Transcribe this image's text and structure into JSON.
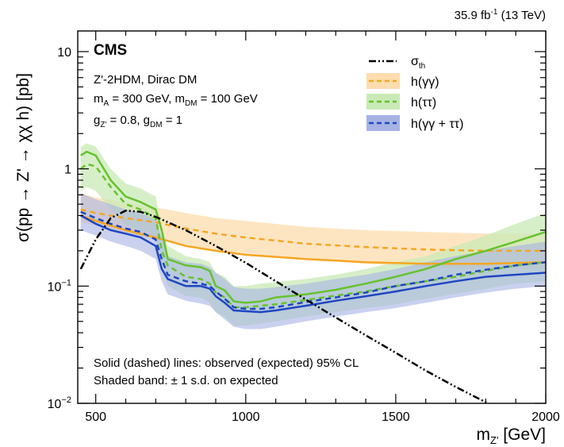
{
  "chart_data": {
    "type": "line",
    "header": {
      "lumi": "35.9",
      "lumi_unit_base": "fb",
      "lumi_unit_exp": "-1",
      "energy": "(13 TeV)"
    },
    "experiment": "CMS",
    "model_info": {
      "line1": "Z'-2HDM, Dirac DM",
      "line2": {
        "a_sym": "m",
        "a_sub": "A",
        "a_val": " = 300 GeV, ",
        "b_sym": "m",
        "b_sub": "DM",
        "b_val": " = 100 GeV"
      },
      "line3": {
        "a_sym": "g",
        "a_sub": "Z'",
        "a_val": " = 0.8, ",
        "b_sym": "g",
        "b_sub": "DM",
        "b_val": " = 1"
      }
    },
    "xlabel": {
      "sym": "m",
      "sub": "Z'",
      "unit": " [GeV]"
    },
    "ylabel": "σ(pp → Z' → χχ h) [pb]",
    "xlim": [
      440,
      2000
    ],
    "ylim": [
      0.01,
      15
    ],
    "yscale": "log",
    "xticks": [
      {
        "v": 500,
        "label": "500"
      },
      {
        "v": 1000,
        "label": "1000"
      },
      {
        "v": 1500,
        "label": "1500"
      },
      {
        "v": 2000,
        "label": "2000"
      }
    ],
    "yticks": [
      {
        "v": 0.01,
        "base": "10",
        "exp": "−2"
      },
      {
        "v": 0.1,
        "base": "10",
        "exp": "−1"
      },
      {
        "v": 1,
        "base": "1",
        "exp": ""
      },
      {
        "v": 10,
        "base": "10",
        "exp": ""
      }
    ],
    "colors": {
      "gg": "#f5a623",
      "tt": "#66c22e",
      "comb": "#1f46c2",
      "gg_band": "#fddcae",
      "tt_band": "#c9eab6",
      "comb_band": "#a7b3e4"
    },
    "legend": [
      {
        "sym": "σ",
        "sub": "th"
      },
      {
        "label": "h(γγ)"
      },
      {
        "label": "h(ττ)"
      },
      {
        "label": "h(γγ + ττ)"
      }
    ],
    "legend_position": "top-right",
    "notes": [
      "Solid (dashed) lines: observed (expected) 95% CL",
      "Shaded band: ± 1 s.d. on expected"
    ],
    "series": {
      "sigma_th": {
        "x": [
          450,
          500,
          550,
          600,
          650,
          700,
          800,
          900,
          1000,
          1100,
          1200,
          1300,
          1400,
          1500,
          1600,
          1700,
          1800,
          1900,
          1950,
          2000
        ],
        "y": [
          0.14,
          0.25,
          0.38,
          0.44,
          0.43,
          0.39,
          0.3,
          0.22,
          0.158,
          0.11,
          0.077,
          0.054,
          0.038,
          0.027,
          0.019,
          0.0138,
          0.0102,
          0.0077,
          0.0067,
          0.0058
        ]
      },
      "gg_obs": {
        "x": [
          450,
          500,
          600,
          700,
          800,
          900,
          1000,
          1200,
          1400,
          1600,
          1800,
          2000
        ],
        "y": [
          0.4,
          0.36,
          0.3,
          0.26,
          0.22,
          0.2,
          0.185,
          0.17,
          0.16,
          0.155,
          0.155,
          0.16
        ]
      },
      "gg_exp": {
        "x": [
          450,
          500,
          600,
          700,
          800,
          900,
          1000,
          1200,
          1400,
          1600,
          1800,
          2000
        ],
        "y": [
          0.45,
          0.42,
          0.38,
          0.35,
          0.31,
          0.28,
          0.26,
          0.23,
          0.215,
          0.205,
          0.2,
          0.2
        ]
      },
      "gg_band": {
        "x": [
          450,
          500,
          600,
          700,
          800,
          900,
          1000,
          1200,
          1400,
          1600,
          1800,
          2000
        ],
        "lo": [
          0.35,
          0.33,
          0.28,
          0.25,
          0.22,
          0.2,
          0.19,
          0.17,
          0.155,
          0.145,
          0.14,
          0.14
        ],
        "hi": [
          0.62,
          0.57,
          0.52,
          0.47,
          0.42,
          0.38,
          0.36,
          0.32,
          0.3,
          0.29,
          0.28,
          0.28
        ]
      },
      "tt_obs": {
        "x": [
          450,
          470,
          500,
          550,
          600,
          650,
          700,
          720,
          740,
          800,
          850,
          880,
          900,
          930,
          960,
          1000,
          1050,
          1100,
          1200,
          1300,
          1400,
          1500,
          1600,
          1700,
          1800,
          1900,
          2000
        ],
        "y": [
          1.3,
          1.4,
          1.3,
          0.8,
          0.58,
          0.52,
          0.45,
          0.3,
          0.17,
          0.15,
          0.145,
          0.135,
          0.1,
          0.092,
          0.074,
          0.072,
          0.074,
          0.08,
          0.085,
          0.093,
          0.105,
          0.12,
          0.14,
          0.17,
          0.2,
          0.24,
          0.29
        ]
      },
      "tt_exp": {
        "x": [
          450,
          470,
          500,
          550,
          600,
          650,
          700,
          720,
          740,
          800,
          850,
          880,
          900,
          930,
          960,
          1000,
          1050,
          1100,
          1200,
          1300,
          1400,
          1500,
          1600,
          1700,
          1800,
          1900,
          2000
        ],
        "y": [
          1.0,
          1.1,
          1.05,
          0.7,
          0.5,
          0.45,
          0.38,
          0.2,
          0.15,
          0.12,
          0.115,
          0.105,
          0.088,
          0.08,
          0.066,
          0.066,
          0.068,
          0.07,
          0.076,
          0.083,
          0.09,
          0.1,
          0.11,
          0.12,
          0.135,
          0.15,
          0.16
        ]
      },
      "tt_band": {
        "x": [
          450,
          470,
          500,
          550,
          600,
          650,
          700,
          720,
          740,
          800,
          850,
          880,
          900,
          930,
          960,
          1000,
          1050,
          1100,
          1200,
          1300,
          1400,
          1500,
          1600,
          1700,
          1800,
          1900,
          2000
        ],
        "lo": [
          0.65,
          0.7,
          0.65,
          0.45,
          0.33,
          0.3,
          0.25,
          0.14,
          0.1,
          0.082,
          0.08,
          0.072,
          0.06,
          0.055,
          0.046,
          0.046,
          0.048,
          0.05,
          0.055,
          0.06,
          0.065,
          0.07,
          0.078,
          0.086,
          0.095,
          0.105,
          0.11
        ],
        "hi": [
          1.55,
          1.65,
          1.55,
          1.0,
          0.75,
          0.68,
          0.58,
          0.3,
          0.22,
          0.18,
          0.17,
          0.16,
          0.13,
          0.12,
          0.1,
          0.1,
          0.105,
          0.108,
          0.115,
          0.125,
          0.14,
          0.16,
          0.18,
          0.22,
          0.27,
          0.34,
          0.42
        ]
      },
      "comb_obs": {
        "x": [
          450,
          500,
          550,
          600,
          650,
          700,
          720,
          740,
          800,
          850,
          880,
          900,
          930,
          960,
          1000,
          1050,
          1100,
          1200,
          1300,
          1400,
          1500,
          1600,
          1700,
          1800,
          1900,
          2000
        ],
        "y": [
          0.4,
          0.34,
          0.3,
          0.28,
          0.26,
          0.22,
          0.14,
          0.115,
          0.1,
          0.1,
          0.095,
          0.082,
          0.072,
          0.062,
          0.061,
          0.06,
          0.062,
          0.068,
          0.075,
          0.082,
          0.09,
          0.1,
          0.11,
          0.12,
          0.125,
          0.13
        ]
      },
      "comb_exp": {
        "x": [
          450,
          500,
          550,
          600,
          650,
          700,
          720,
          740,
          800,
          850,
          880,
          900,
          930,
          960,
          1000,
          1050,
          1100,
          1200,
          1300,
          1400,
          1500,
          1600,
          1700,
          1800,
          1900,
          2000
        ],
        "y": [
          0.43,
          0.38,
          0.34,
          0.31,
          0.29,
          0.25,
          0.17,
          0.125,
          0.11,
          0.105,
          0.1,
          0.09,
          0.078,
          0.066,
          0.064,
          0.064,
          0.066,
          0.073,
          0.08,
          0.088,
          0.1,
          0.11,
          0.125,
          0.138,
          0.15,
          0.16
        ]
      },
      "comb_band": {
        "x": [
          450,
          500,
          550,
          600,
          650,
          700,
          720,
          740,
          800,
          850,
          880,
          900,
          930,
          960,
          1000,
          1050,
          1100,
          1200,
          1300,
          1400,
          1500,
          1600,
          1700,
          1800,
          1900,
          2000
        ],
        "lo": [
          0.3,
          0.27,
          0.24,
          0.22,
          0.2,
          0.17,
          0.11,
          0.085,
          0.075,
          0.071,
          0.068,
          0.06,
          0.052,
          0.045,
          0.043,
          0.043,
          0.045,
          0.05,
          0.055,
          0.06,
          0.065,
          0.072,
          0.08,
          0.088,
          0.095,
          0.1
        ],
        "hi": [
          0.62,
          0.55,
          0.5,
          0.45,
          0.42,
          0.37,
          0.26,
          0.18,
          0.16,
          0.155,
          0.145,
          0.13,
          0.115,
          0.098,
          0.095,
          0.095,
          0.098,
          0.105,
          0.115,
          0.125,
          0.14,
          0.16,
          0.18,
          0.2,
          0.22,
          0.24
        ]
      }
    }
  }
}
